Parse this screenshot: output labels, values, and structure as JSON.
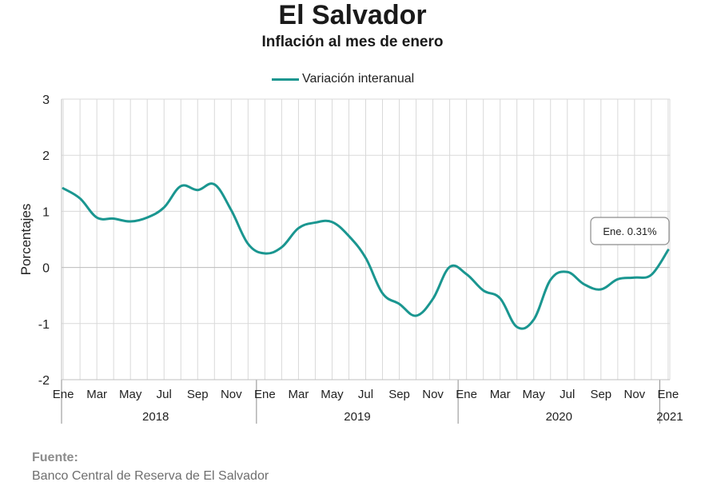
{
  "chart_data": {
    "type": "line",
    "title": "El Salvador",
    "subtitle": "Inflación al mes de enero",
    "ylabel": "Porcentajes",
    "ylim": [
      -2,
      3
    ],
    "yticks": [
      3,
      2,
      1,
      0,
      -1,
      -2
    ],
    "grid": true,
    "legend_position": "top-center",
    "x_month_labels": [
      "Ene",
      "Mar",
      "May",
      "Jul",
      "Sep",
      "Nov",
      "Ene",
      "Mar",
      "May",
      "Jul",
      "Sep",
      "Nov",
      "Ene",
      "Mar",
      "May",
      "Jul",
      "Sep",
      "Nov",
      "Ene"
    ],
    "year_labels": [
      "2018",
      "2019",
      "2020",
      "2021"
    ],
    "series": [
      {
        "name": "Variación interanual",
        "color": "#1a9690",
        "x": [
          "2018-01",
          "2018-02",
          "2018-03",
          "2018-04",
          "2018-05",
          "2018-06",
          "2018-07",
          "2018-08",
          "2018-09",
          "2018-10",
          "2018-11",
          "2018-12",
          "2019-01",
          "2019-02",
          "2019-03",
          "2019-04",
          "2019-05",
          "2019-06",
          "2019-07",
          "2019-08",
          "2019-09",
          "2019-10",
          "2019-11",
          "2019-12",
          "2020-01",
          "2020-02",
          "2020-03",
          "2020-04",
          "2020-05",
          "2020-06",
          "2020-07",
          "2020-08",
          "2020-09",
          "2020-10",
          "2020-11",
          "2020-12",
          "2021-01"
        ],
        "values": [
          1.41,
          1.23,
          0.89,
          0.87,
          0.82,
          0.89,
          1.07,
          1.45,
          1.38,
          1.48,
          1.02,
          0.42,
          0.25,
          0.36,
          0.7,
          0.8,
          0.81,
          0.56,
          0.17,
          -0.46,
          -0.65,
          -0.86,
          -0.56,
          0.01,
          -0.12,
          -0.41,
          -0.55,
          -1.06,
          -0.93,
          -0.22,
          -0.08,
          -0.3,
          -0.39,
          -0.21,
          -0.18,
          -0.13,
          0.31
        ]
      }
    ],
    "annotation": {
      "text": "Ene. 0.31%"
    }
  },
  "source": {
    "label": "Fuente:",
    "text": "Banco Central de Reserva de El Salvador"
  }
}
